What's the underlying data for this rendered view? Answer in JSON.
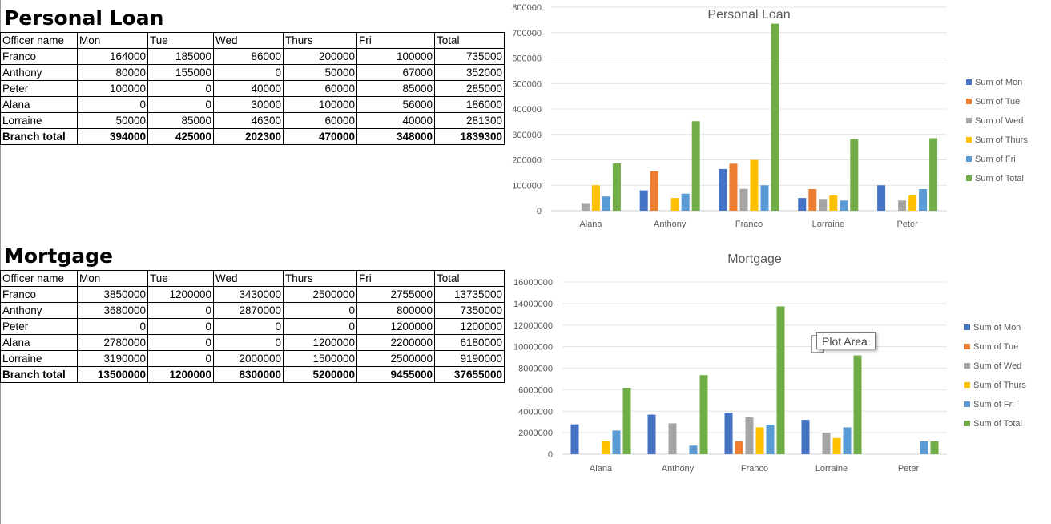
{
  "sections": [
    {
      "title": "Personal Loan",
      "headers": [
        "Officer name",
        "Mon",
        "Tue",
        "Wed",
        "Thurs",
        "Fri",
        "Total"
      ],
      "rows": [
        [
          "Franco",
          "164000",
          "185000",
          "86000",
          "200000",
          "100000",
          "735000"
        ],
        [
          "Anthony",
          "80000",
          "155000",
          "0",
          "50000",
          "67000",
          "352000"
        ],
        [
          "Peter",
          "100000",
          "0",
          "40000",
          "60000",
          "85000",
          "285000"
        ],
        [
          "Alana",
          "0",
          "0",
          "30000",
          "100000",
          "56000",
          "186000"
        ],
        [
          "Lorraine",
          "50000",
          "85000",
          "46300",
          "60000",
          "40000",
          "281300"
        ]
      ],
      "total_row": [
        "Branch total",
        "394000",
        "425000",
        "202300",
        "470000",
        "348000",
        "1839300"
      ]
    },
    {
      "title": "Mortgage",
      "headers": [
        "Officer name",
        "Mon",
        "Tue",
        "Wed",
        "Thurs",
        "Fri",
        "Total"
      ],
      "rows": [
        [
          "Franco",
          "3850000",
          "1200000",
          "3430000",
          "2500000",
          "2755000",
          "13735000"
        ],
        [
          "Anthony",
          "3680000",
          "0",
          "2870000",
          "0",
          "800000",
          "7350000"
        ],
        [
          "Peter",
          "0",
          "0",
          "0",
          "0",
          "1200000",
          "1200000"
        ],
        [
          "Alana",
          "2780000",
          "0",
          "0",
          "1200000",
          "2200000",
          "6180000"
        ],
        [
          "Lorraine",
          "3190000",
          "0",
          "2000000",
          "1500000",
          "2500000",
          "9190000"
        ]
      ],
      "total_row": [
        "Branch total",
        "13500000",
        "1200000",
        "8300000",
        "5200000",
        "9455000",
        "37655000"
      ]
    }
  ],
  "tooltip": {
    "label": "Plot Area"
  },
  "chart_data": [
    {
      "type": "bar",
      "title": "Personal Loan",
      "categories": [
        "Alana",
        "Anthony",
        "Franco",
        "Lorraine",
        "Peter"
      ],
      "ylim": [
        0,
        800000
      ],
      "ytick_labels": [
        "0",
        "100000",
        "200000",
        "300000",
        "400000",
        "500000",
        "600000",
        "700000",
        "800000"
      ],
      "grid": true,
      "legend_position": "right",
      "series": [
        {
          "name": "Sum of Mon",
          "color": "#4472C4",
          "values": [
            0,
            80000,
            164000,
            50000,
            100000
          ]
        },
        {
          "name": "Sum of Tue",
          "color": "#ED7D31",
          "values": [
            0,
            155000,
            185000,
            85000,
            0
          ]
        },
        {
          "name": "Sum of Wed",
          "color": "#A5A5A5",
          "values": [
            30000,
            0,
            86000,
            46300,
            40000
          ]
        },
        {
          "name": "Sum of Thurs",
          "color": "#FFC000",
          "values": [
            100000,
            50000,
            200000,
            60000,
            60000
          ]
        },
        {
          "name": "Sum of Fri",
          "color": "#5B9BD5",
          "values": [
            56000,
            67000,
            100000,
            40000,
            85000
          ]
        },
        {
          "name": "Sum of Total",
          "color": "#70AD47",
          "values": [
            186000,
            352000,
            735000,
            281300,
            285000
          ]
        }
      ]
    },
    {
      "type": "bar",
      "title": "Mortgage",
      "categories": [
        "Alana",
        "Anthony",
        "Franco",
        "Lorraine",
        "Peter"
      ],
      "ylim": [
        0,
        16000000
      ],
      "ytick_labels": [
        "0",
        "2000000",
        "4000000",
        "6000000",
        "8000000",
        "10000000",
        "12000000",
        "14000000",
        "16000000"
      ],
      "grid": true,
      "legend_position": "right",
      "series": [
        {
          "name": "Sum of Mon",
          "color": "#4472C4",
          "values": [
            2780000,
            3680000,
            3850000,
            3190000,
            0
          ]
        },
        {
          "name": "Sum of Tue",
          "color": "#ED7D31",
          "values": [
            0,
            0,
            1200000,
            0,
            0
          ]
        },
        {
          "name": "Sum of Wed",
          "color": "#A5A5A5",
          "values": [
            0,
            2870000,
            3430000,
            2000000,
            0
          ]
        },
        {
          "name": "Sum of Thurs",
          "color": "#FFC000",
          "values": [
            1200000,
            0,
            2500000,
            1500000,
            0
          ]
        },
        {
          "name": "Sum of Fri",
          "color": "#5B9BD5",
          "values": [
            2200000,
            800000,
            2755000,
            2500000,
            1200000
          ]
        },
        {
          "name": "Sum of Total",
          "color": "#70AD47",
          "values": [
            6180000,
            7350000,
            13735000,
            9190000,
            1200000
          ]
        }
      ]
    }
  ]
}
